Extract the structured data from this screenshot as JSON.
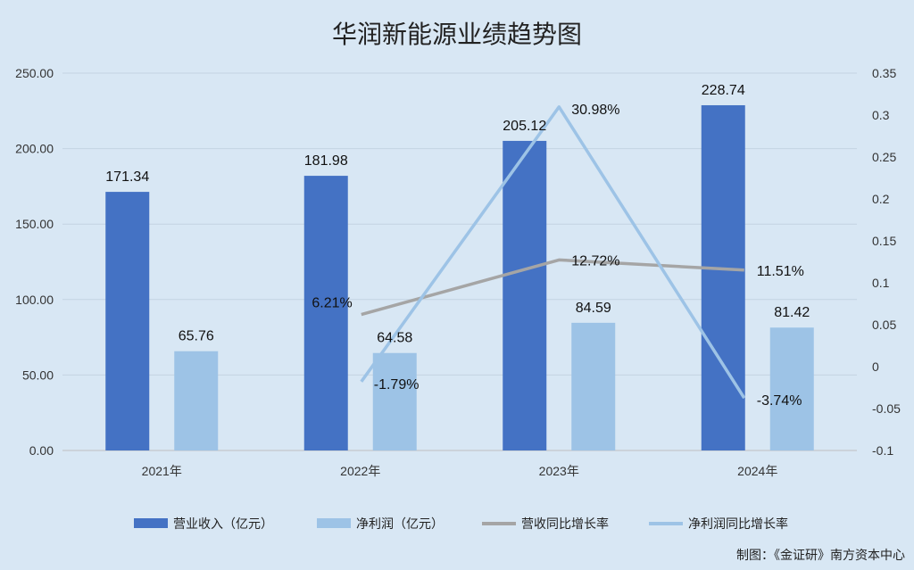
{
  "chart_data": {
    "type": "bar",
    "title": "华润新能源业绩趋势图",
    "categories": [
      "2021年",
      "2022年",
      "2023年",
      "2024年"
    ],
    "ylim": [
      0,
      250
    ],
    "y_ticks": [
      "0.00",
      "50.00",
      "100.00",
      "150.00",
      "200.00",
      "250.00"
    ],
    "y2lim": [
      -0.1,
      0.35
    ],
    "y2_ticks": [
      "-0.1",
      "-0.05",
      "0",
      "0.05",
      "0.1",
      "0.15",
      "0.2",
      "0.25",
      "0.3",
      "0.35"
    ],
    "grid": true,
    "legend_position": "bottom",
    "series": [
      {
        "name": "营业收入（亿元）",
        "kind": "bar",
        "axis": "left",
        "color": "#4472c4",
        "values": [
          171.34,
          181.98,
          205.12,
          228.74
        ],
        "labels": [
          "171.34",
          "181.98",
          "205.12",
          "228.74"
        ]
      },
      {
        "name": "净利润（亿元）",
        "kind": "bar",
        "axis": "left",
        "color": "#9dc3e6",
        "values": [
          65.76,
          64.58,
          84.59,
          81.42
        ],
        "labels": [
          "65.76",
          "64.58",
          "84.59",
          "81.42"
        ]
      },
      {
        "name": "营收同比增长率",
        "kind": "line",
        "axis": "right",
        "color": "#a5a5a5",
        "values": [
          null,
          0.0621,
          0.1272,
          0.1151
        ],
        "labels": [
          "",
          "6.21%",
          "12.72%",
          "11.51%"
        ]
      },
      {
        "name": "净利润同比增长率",
        "kind": "line",
        "axis": "right",
        "color": "#9dc3e6",
        "values": [
          null,
          -0.0179,
          0.3098,
          -0.0374
        ],
        "labels": [
          "",
          "-1.79%",
          "30.98%",
          "-3.74%"
        ]
      }
    ]
  },
  "source": "制图：《金证研》南方资本中心",
  "colors": {
    "background": "#d8e7f4",
    "grid": "#c3d3e2"
  }
}
